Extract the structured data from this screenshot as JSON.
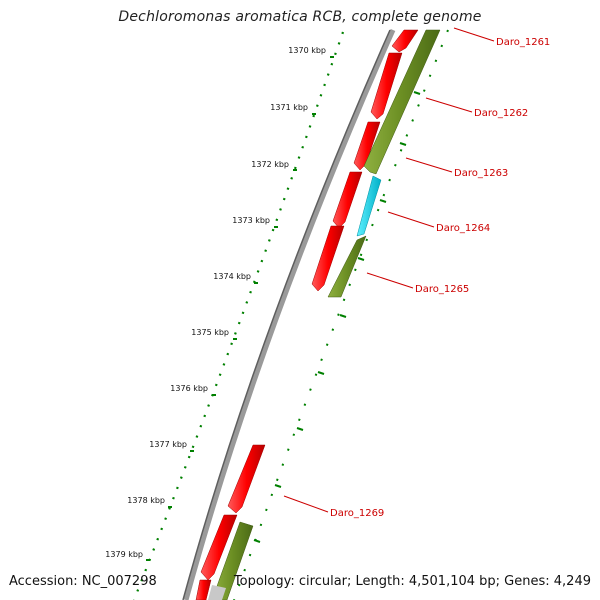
{
  "title": "Dechloromonas aromatica RCB, complete genome",
  "accession": "Accession: NC_007298",
  "summary": "Topology: circular; Length: 4,501,104 bp; Genes: 4,249",
  "colors": {
    "forward_gene": "#ff0000",
    "reverse_gene": "#6b8e23",
    "highlight_gene": "#00c8d8",
    "label": "#cc0000",
    "tick": "#008000",
    "backbone": "#808080"
  },
  "ticks": [
    {
      "label": "1370 kbp"
    },
    {
      "label": "1371 kbp"
    },
    {
      "label": "1372 kbp"
    },
    {
      "label": "1373 kbp"
    },
    {
      "label": "1374 kbp"
    },
    {
      "label": "1375 kbp"
    },
    {
      "label": "1376 kbp"
    },
    {
      "label": "1377 kbp"
    },
    {
      "label": "1378 kbp"
    },
    {
      "label": "1379 kbp"
    }
  ],
  "gene_labels": [
    "Daro_1261",
    "Daro_1262",
    "Daro_1263",
    "Daro_1264",
    "Daro_1265",
    "Daro_1269"
  ]
}
